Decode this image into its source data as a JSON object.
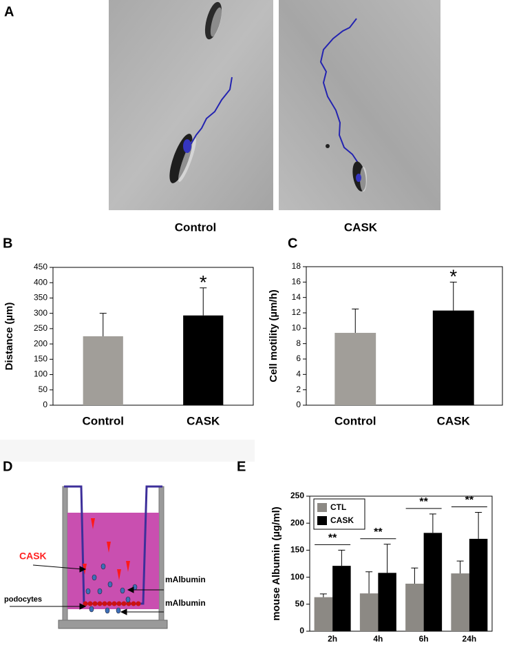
{
  "panel_labels": [
    "A",
    "B",
    "C",
    "D",
    "E"
  ],
  "panel_a": {
    "captions": [
      "Control",
      "CASK"
    ]
  },
  "panel_d": {
    "labels": {
      "cask": "CASK",
      "podocytes": "podocytes",
      "malbumin_top": "mAlbumin",
      "malbumin_bottom": "mAlbumin"
    }
  },
  "chart_data": [
    {
      "type": "bar",
      "ylabel": "Distance (µm)",
      "categories": [
        "Control",
        "CASK"
      ],
      "values": [
        225,
        293
      ],
      "errors": [
        75,
        90
      ],
      "colors": [
        "#a19e99",
        "#000000"
      ],
      "annotations": [
        null,
        "*"
      ],
      "ylim": [
        0,
        450
      ],
      "yticks": [
        0,
        50,
        100,
        150,
        200,
        250,
        300,
        350,
        400,
        450
      ]
    },
    {
      "type": "bar",
      "ylabel": "Cell motility (µm/h)",
      "categories": [
        "Control",
        "CASK"
      ],
      "values": [
        9.4,
        12.3
      ],
      "errors": [
        3.1,
        3.7
      ],
      "colors": [
        "#a19e99",
        "#000000"
      ],
      "annotations": [
        null,
        "*"
      ],
      "ylim": [
        0,
        18
      ],
      "yticks": [
        0,
        2,
        4,
        6,
        8,
        10,
        12,
        14,
        16,
        18
      ]
    },
    {
      "type": "bar",
      "ylabel": "mouse Albumin (µg/ml)",
      "categories": [
        "2h",
        "4h",
        "6h",
        "24h"
      ],
      "series": [
        {
          "name": "CTL",
          "color": "#8c8984",
          "values": [
            63,
            70,
            88,
            107
          ],
          "errors": [
            6,
            40,
            29,
            23
          ]
        },
        {
          "name": "CASK",
          "color": "#000000",
          "values": [
            121,
            108,
            182,
            171
          ],
          "errors": [
            29,
            53,
            35,
            49
          ]
        }
      ],
      "annotations": [
        "**",
        "**",
        "**",
        "**"
      ],
      "legend": "upper left",
      "ylim": [
        0,
        250
      ],
      "yticks": [
        0,
        50,
        100,
        150,
        200,
        250
      ]
    }
  ]
}
